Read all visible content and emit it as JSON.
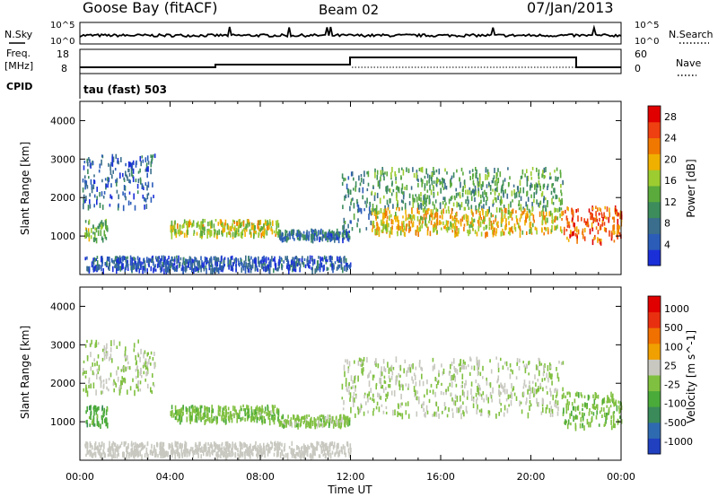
{
  "header": {
    "station": "Goose Bay (fitACF)",
    "beam": "Beam 02",
    "date": "07/Jan/2013"
  },
  "noise_panel": {
    "left_label": "N.Sky",
    "right_label": "N.Search",
    "left_ticks": [
      "10^5",
      "10^0"
    ],
    "right_ticks": [
      "10^5",
      "10^0"
    ]
  },
  "freq_panel": {
    "left_label_line1": "Freq.",
    "left_label_line2": "[MHz]",
    "cpid_label": "CPID",
    "right_label": "Nave",
    "left_ticks": [
      "18",
      "8"
    ],
    "right_ticks": [
      "60",
      "0"
    ]
  },
  "cpid_text": "tau (fast) 503",
  "colors": {
    "power": [
      "#1a2fd8",
      "#2b5cb8",
      "#3a6e8c",
      "#3c8c5c",
      "#5aaa3c",
      "#9ccc30",
      "#f0b000",
      "#f07800",
      "#ee4010",
      "#e00000"
    ],
    "velocity": [
      "#2040c0",
      "#2e6ab0",
      "#3a8a5a",
      "#4aaa3a",
      "#80c040",
      "#c8c8c0",
      "#f0a000",
      "#f07000",
      "#e83010",
      "#e00000"
    ]
  },
  "chart_data": [
    {
      "type": "heatmap",
      "title": "",
      "xlabel": "Time UT",
      "ylabel": "Slant Range [km]",
      "xlim": [
        "00:00",
        "24:00"
      ],
      "ylim": [
        0,
        4500
      ],
      "x_ticks": [
        "00:00",
        "04:00",
        "08:00",
        "12:00",
        "16:00",
        "20:00",
        "00:00"
      ],
      "y_ticks": [
        "1000",
        "2000",
        "3000",
        "4000"
      ],
      "colorbar": {
        "label": "Power [dB]",
        "range": [
          0,
          30
        ],
        "ticks": [
          "4",
          "8",
          "12",
          "16",
          "20",
          "24",
          "28"
        ]
      },
      "regions": [
        {
          "t0": 0.2,
          "t1": 1.2,
          "r0": 950,
          "r1": 1450,
          "value": 14
        },
        {
          "t0": 0.1,
          "t1": 3.3,
          "r0": 1800,
          "r1": 3150,
          "value": 6
        },
        {
          "t0": 4.0,
          "t1": 8.8,
          "r0": 1050,
          "r1": 1450,
          "value": 17
        },
        {
          "t0": 8.8,
          "t1": 12.0,
          "r0": 950,
          "r1": 1200,
          "value": 7
        },
        {
          "t0": 11.6,
          "t1": 12.9,
          "r0": 1200,
          "r1": 2700,
          "value": 8
        },
        {
          "t0": 12.9,
          "t1": 21.4,
          "r0": 1700,
          "r1": 2800,
          "value": 12
        },
        {
          "t0": 12.9,
          "t1": 21.4,
          "r0": 1100,
          "r1": 1750,
          "value": 19
        },
        {
          "t0": 21.4,
          "t1": 24.0,
          "r0": 900,
          "r1": 1800,
          "value": 24
        },
        {
          "t0": 0.2,
          "t1": 12.0,
          "r0": 150,
          "r1": 500,
          "value": 5
        }
      ]
    },
    {
      "type": "heatmap",
      "title": "",
      "xlabel": "Time UT",
      "ylabel": "Slant Range [km]",
      "xlim": [
        "00:00",
        "24:00"
      ],
      "ylim": [
        0,
        4500
      ],
      "x_ticks": [
        "00:00",
        "04:00",
        "08:00",
        "12:00",
        "16:00",
        "20:00",
        "00:00"
      ],
      "y_ticks": [
        "1000",
        "2000",
        "3000",
        "4000"
      ],
      "colorbar": {
        "label": "Velocity [m s^-1]",
        "range": [
          -1000,
          1000
        ],
        "ticks": [
          "1000",
          "500",
          "100",
          "25",
          "-25",
          "-100",
          "-500",
          "-1000"
        ]
      },
      "regions": [
        {
          "t0": 0.2,
          "t1": 1.2,
          "r0": 950,
          "r1": 1450,
          "value": -300
        },
        {
          "t0": 0.1,
          "t1": 3.3,
          "r0": 1800,
          "r1": 3150,
          "value": 0
        },
        {
          "t0": 4.0,
          "t1": 8.8,
          "r0": 1050,
          "r1": 1450,
          "value": -120
        },
        {
          "t0": 8.8,
          "t1": 12.0,
          "r0": 950,
          "r1": 1200,
          "value": -100
        },
        {
          "t0": 11.6,
          "t1": 21.4,
          "r0": 1200,
          "r1": 2700,
          "value": 0
        },
        {
          "t0": 21.4,
          "t1": 24.0,
          "r0": 900,
          "r1": 1800,
          "value": -150
        },
        {
          "t0": 0.2,
          "t1": 12.0,
          "r0": 150,
          "r1": 500,
          "value": 50
        }
      ]
    }
  ]
}
